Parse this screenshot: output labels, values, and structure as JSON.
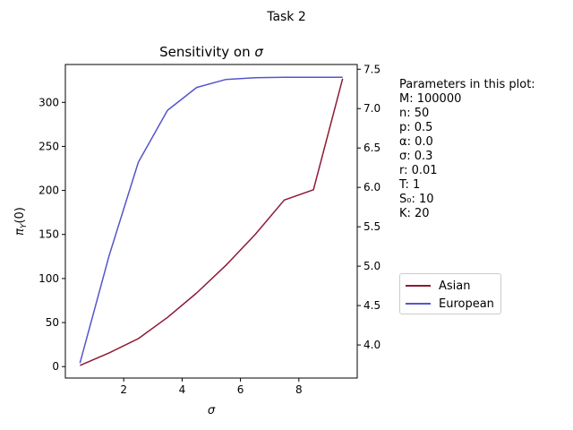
{
  "figure_title": "Task 2",
  "chart_data": {
    "type": "line",
    "title": "Sensitivity on σ",
    "xlabel": "σ",
    "ylabel_left": "π_Y(0)",
    "x": [
      0.5,
      1.5,
      2.5,
      3.5,
      4.5,
      5.5,
      6.5,
      7.5,
      8.5,
      9.5
    ],
    "xlim": [
      0.0,
      10.0
    ],
    "xticks": [
      2,
      4,
      6,
      8
    ],
    "ylim_left": [
      -13,
      343
    ],
    "yticks_left": [
      0,
      50,
      100,
      150,
      200,
      250,
      300
    ],
    "ylim_right": [
      3.58,
      7.56
    ],
    "yticks_right": [
      4.0,
      4.5,
      5.0,
      5.5,
      6.0,
      6.5,
      7.0,
      7.5
    ],
    "series": [
      {
        "name": "Asian",
        "axis": "right",
        "color": "#8b1a35",
        "values": [
          3.74,
          3.9,
          4.08,
          4.35,
          4.66,
          5.01,
          5.4,
          5.84,
          5.97,
          7.38
        ]
      },
      {
        "name": "European",
        "axis": "left",
        "color": "#5555cc",
        "values": [
          4,
          126,
          232,
          291,
          317,
          326,
          328,
          328.5,
          328.5,
          328.5
        ]
      }
    ],
    "legend": "center-right, outside plot",
    "grid": false
  },
  "params": {
    "heading": "Parameters in this plot:",
    "lines": [
      "M: 100000",
      "n: 50",
      "p: 0.5",
      "α: 0.0",
      "σ: 0.3",
      "r: 0.01",
      "T: 1",
      "S₀: 10",
      "K: 20"
    ]
  }
}
